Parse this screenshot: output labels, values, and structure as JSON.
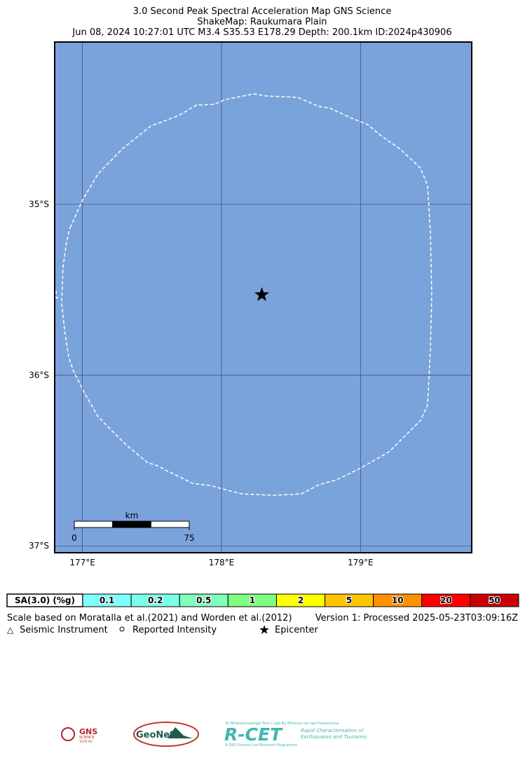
{
  "title": [
    "3.0 Second Peak Spectral Acceleration Map GNS Science",
    "ShakeMap: Raukumara Plain",
    "Jun 08, 2024 10:27:01 UTC M3.4 S35.53 E178.29 Depth: 200.1km ID:2024p430906"
  ],
  "map": {
    "xlim": [
      176.8,
      179.8
    ],
    "ylim": [
      -37.04,
      -34.05
    ],
    "xticks": [
      {
        "value": 177,
        "label": "177°E"
      },
      {
        "value": 178,
        "label": "178°E"
      },
      {
        "value": 179,
        "label": "179°E"
      }
    ],
    "yticks": [
      {
        "value": -35,
        "label": "35°S"
      },
      {
        "value": -36,
        "label": "36°S"
      },
      {
        "value": -37,
        "label": "37°S"
      }
    ],
    "epicenter": {
      "lon": 178.29,
      "lat": -35.53
    },
    "scale_bar": {
      "unit": "km",
      "ticks": [
        0,
        75
      ]
    }
  },
  "intensity_scale": {
    "label": "SA(3.0) (%g)",
    "levels": [
      {
        "value": 0.1,
        "color": "#80ffff"
      },
      {
        "value": 0.2,
        "color": "#7affea"
      },
      {
        "value": 0.5,
        "color": "#80ffbf"
      },
      {
        "value": 1,
        "color": "#80ff80"
      },
      {
        "value": 2,
        "color": "#ffff00"
      },
      {
        "value": 5,
        "color": "#ffc400"
      },
      {
        "value": 10,
        "color": "#ff9100"
      },
      {
        "value": 20,
        "color": "#ff0000"
      },
      {
        "value": 50,
        "color": "#c80000"
      }
    ]
  },
  "footer": {
    "scale_note": "Scale based on Moratalla et al.(2021) and Worden et al.(2012)",
    "version": "Version 1: Processed 2025-05-23T03:09:16Z",
    "legend": [
      "Seismic Instrument",
      "Reported Intensity",
      "Epicenter"
    ]
  },
  "logos": {
    "gns": [
      "GNS",
      "SCIENCE",
      "TE PŪ AO"
    ],
    "geonet": "GeoNet",
    "rcet": {
      "name": "R-CET",
      "top": "Te Whakaahuatanga Tere o ngā Rū Whenua me ngā Parawhenua",
      "line1": "Rapid Characterisation of",
      "line2": "Earthquakes and Tsunamis",
      "bottom": "A GNS Science Led Research Programme"
    }
  }
}
